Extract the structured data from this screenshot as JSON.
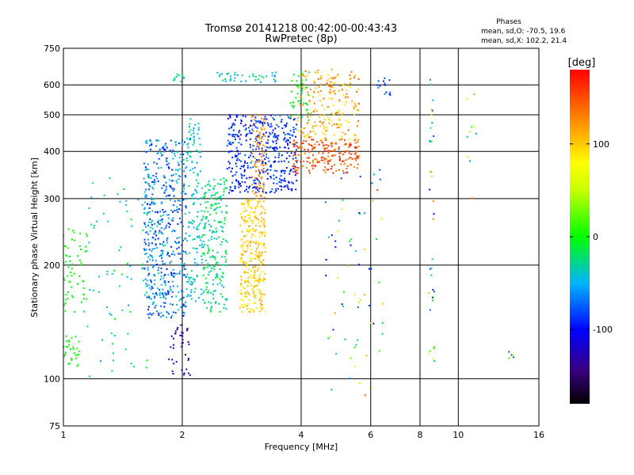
{
  "chart_data": {
    "type": "scatter",
    "title": "Tromsø 20141218 00:42:00-00:43:43",
    "subtitle": "RwPretec (8p)",
    "xlabel": "Frequency [MHz]",
    "ylabel": "Stationary phase Virtual Height [km]",
    "x_scale": "log",
    "y_scale": "log",
    "xlim": [
      1,
      16
    ],
    "ylim": [
      75,
      750
    ],
    "x_ticks": [
      1,
      2,
      4,
      6,
      8,
      10,
      16
    ],
    "y_ticks": [
      75,
      100,
      200,
      300,
      400,
      500,
      600,
      750
    ],
    "x_grid": [
      2,
      4,
      6,
      8,
      10
    ],
    "y_grid": [
      100,
      200,
      300,
      400,
      500,
      600
    ],
    "grid": true,
    "stats": {
      "heading": "Phases",
      "line1": "mean, sd,O: -70.5, 19.6",
      "line2": "mean, sd,X: 102.2, 21.4"
    },
    "colorbar": {
      "label": "[deg]",
      "range": [
        -180,
        180
      ],
      "ticks": [
        -100,
        0,
        100
      ],
      "placement": "right"
    },
    "clusters": [
      {
        "x": [
          1.0,
          1.15
        ],
        "y": [
          150,
          250
        ],
        "phase": [
          -10,
          10
        ],
        "n": 60
      },
      {
        "x": [
          1.0,
          1.1
        ],
        "y": [
          105,
          130
        ],
        "phase": [
          -10,
          10
        ],
        "n": 30
      },
      {
        "x": [
          1.15,
          1.65
        ],
        "y": [
          100,
          340
        ],
        "phase": [
          -60,
          -5
        ],
        "n": 70
      },
      {
        "x": [
          1.6,
          2.05
        ],
        "y": [
          145,
          430
        ],
        "phase": [
          -100,
          -30
        ],
        "n": 520
      },
      {
        "x": [
          1.85,
          2.1
        ],
        "y": [
          100,
          140
        ],
        "phase": [
          -150,
          -110
        ],
        "n": 40
      },
      {
        "x": [
          2.05,
          2.25
        ],
        "y": [
          160,
          500
        ],
        "phase": [
          -60,
          -20
        ],
        "n": 150
      },
      {
        "x": [
          2.25,
          2.6
        ],
        "y": [
          150,
          340
        ],
        "phase": [
          -45,
          -5
        ],
        "n": 220
      },
      {
        "x": [
          2.6,
          3.9
        ],
        "y": [
          310,
          500
        ],
        "phase": [
          -110,
          -70
        ],
        "n": 420
      },
      {
        "x": [
          2.8,
          3.25
        ],
        "y": [
          150,
          300
        ],
        "phase": [
          75,
          120
        ],
        "n": 300
      },
      {
        "x": [
          3.0,
          3.25
        ],
        "y": [
          300,
          500
        ],
        "phase": [
          115,
          140
        ],
        "n": 80
      },
      {
        "x": [
          3.8,
          5.6
        ],
        "y": [
          350,
          430
        ],
        "phase": [
          120,
          175
        ],
        "n": 200
      },
      {
        "x": [
          3.9,
          5.6
        ],
        "y": [
          430,
          660
        ],
        "phase": [
          80,
          150
        ],
        "n": 200
      },
      {
        "x": [
          3.75,
          4.2
        ],
        "y": [
          480,
          660
        ],
        "phase": [
          -20,
          10
        ],
        "n": 45
      },
      {
        "x": [
          2.4,
          3.5
        ],
        "y": [
          610,
          650
        ],
        "phase": [
          -60,
          -10
        ],
        "n": 40
      },
      {
        "x": [
          1.9,
          2.1
        ],
        "y": [
          610,
          640
        ],
        "phase": [
          -40,
          -10
        ],
        "n": 12
      },
      {
        "x": [
          6.2,
          6.8
        ],
        "y": [
          560,
          630
        ],
        "phase": [
          -100,
          -60
        ],
        "n": 14
      },
      {
        "x": [
          4.6,
          6.5
        ],
        "y": [
          90,
          400
        ],
        "phase": [
          -120,
          160
        ],
        "n": 70
      },
      {
        "x": [
          8.4,
          8.7
        ],
        "y": [
          100,
          620
        ],
        "phase": [
          -120,
          140
        ],
        "n": 36
      },
      {
        "x": [
          10.4,
          11.2
        ],
        "y": [
          300,
          630
        ],
        "phase": [
          -80,
          120
        ],
        "n": 10
      },
      {
        "x": [
          13.4,
          13.9
        ],
        "y": [
          113,
          118
        ],
        "phase": [
          -100,
          80
        ],
        "n": 5
      }
    ]
  }
}
